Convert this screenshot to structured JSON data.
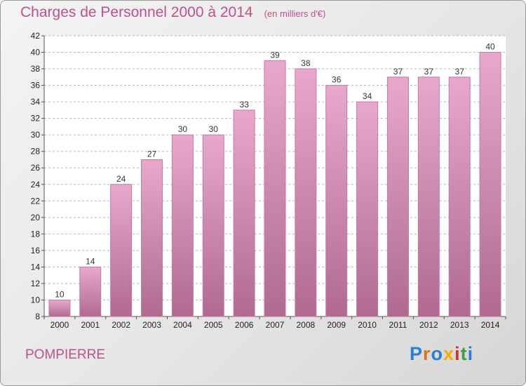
{
  "title": "Charges de Personnel 2000 à 2014",
  "subtitle": "(en milliers d'€)",
  "town": "POMPIERRE",
  "logo": {
    "letters": [
      "P",
      "r",
      "o",
      "x",
      "i",
      "t",
      "i"
    ],
    "colors": [
      "#2a7fd4",
      "#e07020",
      "#2a7fd4",
      "#f0b000",
      "#d83030",
      "#3aa040",
      "#2a7fd4"
    ]
  },
  "colors": {
    "bar_top": "#e8a8cc",
    "bar_bottom": "#b06a92",
    "bar_stroke": "#c27ba4",
    "title": "#c0508a"
  },
  "chart_data": {
    "type": "bar",
    "categories": [
      "2000",
      "2001",
      "2002",
      "2003",
      "2004",
      "2005",
      "2006",
      "2007",
      "2008",
      "2009",
      "2010",
      "2011",
      "2012",
      "2013",
      "2014"
    ],
    "values": [
      10,
      14,
      24,
      27,
      30,
      30,
      33,
      39,
      38,
      36,
      34,
      37,
      37,
      37,
      40
    ],
    "ylim": [
      8,
      42
    ],
    "yticks": [
      8,
      10,
      12,
      14,
      16,
      18,
      20,
      22,
      24,
      26,
      28,
      30,
      32,
      34,
      36,
      38,
      40,
      42
    ],
    "grid": true,
    "xlabel": "",
    "ylabel": ""
  }
}
